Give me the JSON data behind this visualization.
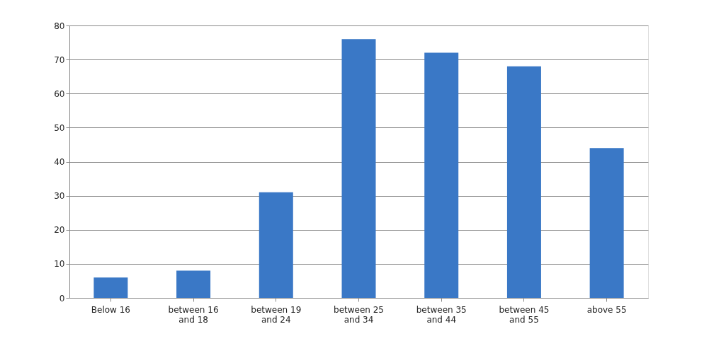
{
  "chart_data": {
    "type": "bar",
    "categories": [
      "Below 16",
      "between 16\nand 18",
      "between 19\nand 24",
      "between 25\nand 34",
      "between 35\nand 44",
      "between 45\nand 55",
      "above 55"
    ],
    "values": [
      6,
      8,
      31,
      76,
      72,
      68,
      44
    ],
    "color": "#3a78c6",
    "ylim": [
      0,
      80
    ],
    "yticks": [
      0,
      10,
      20,
      30,
      40,
      50,
      60,
      70,
      80
    ],
    "grid": "y"
  }
}
